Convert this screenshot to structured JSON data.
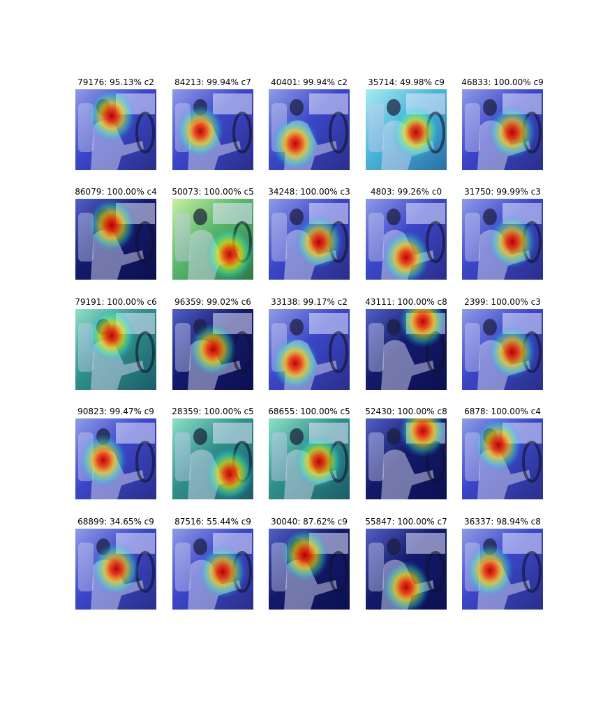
{
  "figure": {
    "rows": [
      [
        {
          "label": "79176: 95.13% c2",
          "heat": "upper-center",
          "tone": "blue"
        },
        {
          "label": "84213: 99.94% c7",
          "heat": "center-left",
          "tone": "blue"
        },
        {
          "label": "40401: 99.94% c2",
          "heat": "lower-left",
          "tone": "blue"
        },
        {
          "label": "35714: 49.98% c9",
          "heat": "center-right",
          "tone": "cyan"
        },
        {
          "label": "46833: 100.00% c9",
          "heat": "center-right",
          "tone": "blue"
        }
      ],
      [
        {
          "label": "86079: 100.00% c4",
          "heat": "upper-center",
          "tone": "navy"
        },
        {
          "label": "50073: 100.00% c5",
          "heat": "lower-right",
          "tone": "green"
        },
        {
          "label": "34248: 100.00% c3",
          "heat": "center-right",
          "tone": "blue"
        },
        {
          "label": "4803: 99.26% c0",
          "heat": "lower-center",
          "tone": "blue"
        },
        {
          "label": "31750: 99.99% c3",
          "heat": "center-right",
          "tone": "blue"
        }
      ],
      [
        {
          "label": "79191: 100.00% c6",
          "heat": "upper-center",
          "tone": "teal"
        },
        {
          "label": "96359: 99.02% c6",
          "heat": "center",
          "tone": "navy"
        },
        {
          "label": "33138: 99.17% c2",
          "heat": "lower-left",
          "tone": "blue"
        },
        {
          "label": "43111: 100.00% c8",
          "heat": "top-right",
          "tone": "navy"
        },
        {
          "label": "2399: 100.00% c3",
          "heat": "center-right",
          "tone": "blue"
        }
      ],
      [
        {
          "label": "90823: 99.47% c9",
          "heat": "center-left",
          "tone": "blue"
        },
        {
          "label": "28359: 100.00% c5",
          "heat": "lower-right",
          "tone": "teal"
        },
        {
          "label": "68655: 100.00% c5",
          "heat": "center-right",
          "tone": "teal"
        },
        {
          "label": "52430: 100.00% c8",
          "heat": "top-right",
          "tone": "navy"
        },
        {
          "label": "6878: 100.00% c4",
          "heat": "upper-center",
          "tone": "blue"
        }
      ],
      [
        {
          "label": "68899: 34.65% c9",
          "heat": "center",
          "tone": "blue"
        },
        {
          "label": "87516: 55.44% c9",
          "heat": "center-right",
          "tone": "blue"
        },
        {
          "label": "30040: 87.62% c9",
          "heat": "upper-center",
          "tone": "navy"
        },
        {
          "label": "55847: 100.00% c7",
          "heat": "lower-center",
          "tone": "navy"
        },
        {
          "label": "36337: 98.94% c8",
          "heat": "center-left",
          "tone": "blue"
        }
      ]
    ]
  }
}
